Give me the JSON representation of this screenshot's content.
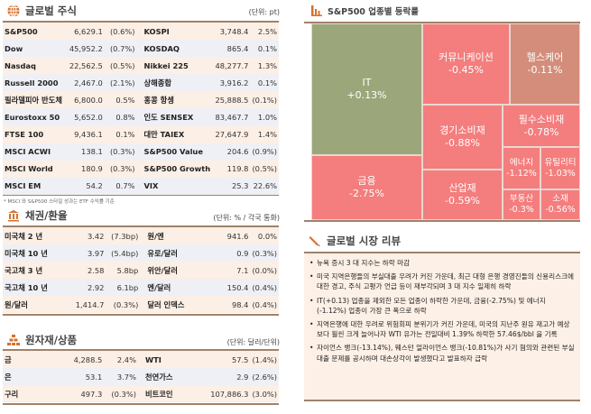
{
  "stocks": {
    "title": "글로벌 주식",
    "unit": "(단위: pt)",
    "footnote": "* MSCI 와 S&P500 스타일 성과는 ETF 수익률 기준",
    "rows": [
      {
        "n": "S&P500",
        "v": "6,629.1",
        "c": "(0.6%)",
        "n2": "KOSPI",
        "v2": "3,748.4",
        "c2": "2.5%"
      },
      {
        "n": "Dow",
        "v": "45,952.2",
        "c": "(0.7%)",
        "n2": "KOSDAQ",
        "v2": "865.4",
        "c2": "0.1%"
      },
      {
        "n": "Nasdaq",
        "v": "22,562.5",
        "c": "(0.5%)",
        "n2": "Nikkei 225",
        "v2": "48,277.7",
        "c2": "1.3%"
      },
      {
        "n": "Russell 2000",
        "v": "2,467.0",
        "c": "(2.1%)",
        "n2": "상해종합",
        "v2": "3,916.2",
        "c2": "0.1%"
      },
      {
        "n": "필라델피아 반도체",
        "v": "6,800.0",
        "c": "0.5%",
        "n2": "홍콩 항셍",
        "v2": "25,888.5",
        "c2": "(0.1%)"
      },
      {
        "n": "Eurostoxx 50",
        "v": "5,652.0",
        "c": "0.8%",
        "n2": "인도 SENSEX",
        "v2": "83,467.7",
        "c2": "1.0%"
      },
      {
        "n": "FTSE 100",
        "v": "9,436.1",
        "c": "0.1%",
        "n2": "대만 TAIEX",
        "v2": "27,647.9",
        "c2": "1.4%"
      },
      {
        "n": "MSCI ACWI",
        "v": "138.1",
        "c": "(0.3%)",
        "n2": "S&P500 Value",
        "v2": "204.6",
        "c2": "(0.9%)"
      },
      {
        "n": "MSCI World",
        "v": "180.9",
        "c": "(0.3%)",
        "n2": "S&P500 Growth",
        "v2": "119.8",
        "c2": "(0.5%)"
      },
      {
        "n": "MSCI EM",
        "v": "54.2",
        "c": "0.7%",
        "n2": "VIX",
        "v2": "25.3",
        "c2": "22.6%"
      }
    ]
  },
  "bonds": {
    "title": "채권/환율",
    "unit": "(단위: % / 각국 통화)",
    "rows": [
      {
        "n": "미국채 2 년",
        "v": "3.42",
        "c": "(7.3bp)",
        "n2": "원/엔",
        "v2": "941.6",
        "c2": "0.0%"
      },
      {
        "n": "미국채 10 년",
        "v": "3.97",
        "c": "(5.4bp)",
        "n2": "유로/달러",
        "v2": "0.9",
        "c2": "(0.3%)"
      },
      {
        "n": "국고채 3 년",
        "v": "2.58",
        "c": "5.8bp",
        "n2": "위안/달러",
        "v2": "7.1",
        "c2": "(0.0%)"
      },
      {
        "n": "국고채 10 년",
        "v": "2.92",
        "c": "6.1bp",
        "n2": "엔/달러",
        "v2": "150.4",
        "c2": "(0.4%)"
      },
      {
        "n": "원/달러",
        "v": "1,414.7",
        "c": "(0.3%)",
        "n2": "달러 인덱스",
        "v2": "98.4",
        "c2": "(0.4%)"
      }
    ]
  },
  "commodities": {
    "title": "원자재/상품",
    "unit": "(단위: 달러/단위)",
    "rows": [
      {
        "n": "금",
        "v": "4,288.5",
        "c": "2.4%",
        "n2": "WTI",
        "v2": "57.5",
        "c2": "(1.4%)"
      },
      {
        "n": "은",
        "v": "53.1",
        "c": "3.7%",
        "n2": "천연가스",
        "v2": "2.9",
        "c2": "(2.6%)"
      },
      {
        "n": "구리",
        "v": "497.3",
        "c": "(0.3%)",
        "n2": "비트코인",
        "v2": "107,886.3",
        "c2": "(3.0%)"
      }
    ]
  },
  "treemap": {
    "title": "S&P500 업종별 등락률",
    "cells": [
      {
        "name": "IT",
        "value": "+0.13%",
        "color": "#9ba77b"
      },
      {
        "name": "금융",
        "value": "-2.75%",
        "color": "#f47d7d"
      },
      {
        "name": "커뮤니케이션",
        "value": "-0.45%",
        "color": "#f47d7d"
      },
      {
        "name": "헬스케어",
        "value": "-0.11%",
        "color": "#d48d7b"
      },
      {
        "name": "경기소비재",
        "value": "-0.88%",
        "color": "#f47d7d"
      },
      {
        "name": "산업재",
        "value": "-0.59%",
        "color": "#f47d7d"
      },
      {
        "name": "필수소비재",
        "value": "-0.78%",
        "color": "#f47d7d"
      },
      {
        "name": "에너지",
        "value": "-1.12%",
        "color": "#f47d7d"
      },
      {
        "name": "유틸리티",
        "value": "-1.03%",
        "color": "#f47d7d"
      },
      {
        "name": "부동산",
        "value": "-0.3%",
        "color": "#f47d7d"
      },
      {
        "name": "소재",
        "value": "-0.56%",
        "color": "#f47d7d"
      }
    ]
  },
  "review": {
    "title": "글로벌 시장 리뷰",
    "items": [
      "뉴욕 증시 3 대 지수는 하락 마감",
      "미국 지역은행들의 부실대출 우려가 커진 가운데, 최근 대형 은행 경영진들의 신용리스크에 대한 경고, 주식 고평가 언급 등이 재부각되며 3 대 지수 일제히 하락",
      "IT(+0.13) 업종을 제외한 모든 업종이 하락한 가운데, 금융(-2.75%) 및 에너지(-1.12%) 업종이 가장 큰 폭으로 하락",
      "지역은행에 대한 우려로 위험회피 분위기가 커진 가운데, 미국의 지난주 원유 재고가 예상보다 훨씬 크게 늘어나자 WTI 유가는 전일대비 1.39% 하락한 57.46$/bbl 을 기록",
      "자이언스 뱅크(-13.14%), 웨스턴 얼라이언스 뱅크(-10.81%)가 사기 혐의와 관련된 부실 대출 문제를 공시하며 대손상각이 발생했다고 발표하자 급락"
    ]
  }
}
